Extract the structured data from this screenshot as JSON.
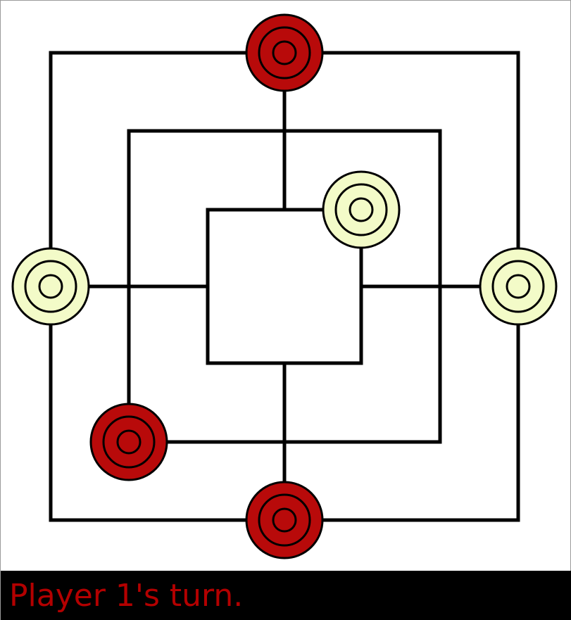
{
  "status": {
    "text": "Player 1's turn.",
    "color": "#b30000"
  },
  "board": {
    "line_color": "#000000",
    "background": "#ffffff"
  },
  "players": {
    "player1": {
      "color": "#b80a0a"
    },
    "player2": {
      "color": "#f3fbc8"
    }
  },
  "pieces": [
    {
      "point": "outer-top-middle",
      "owner": "player1"
    },
    {
      "point": "outer-middle-left",
      "owner": "player2"
    },
    {
      "point": "outer-middle-right",
      "owner": "player2"
    },
    {
      "point": "outer-bottom-middle",
      "owner": "player1"
    },
    {
      "point": "middle-bottom-left",
      "owner": "player1"
    },
    {
      "point": "inner-top-right",
      "owner": "player2"
    }
  ]
}
